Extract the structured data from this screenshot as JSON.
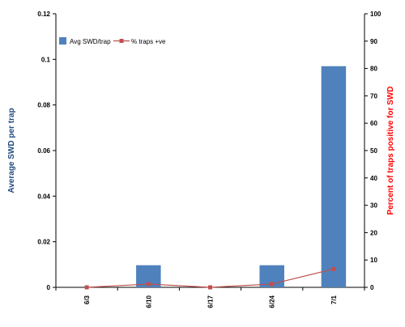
{
  "chart_data": {
    "type": "bar",
    "categories": [
      "6/3",
      "6/10",
      "6/17",
      "6/24",
      "7/1"
    ],
    "series": [
      {
        "name": "Avg SWD/trap",
        "type": "bar",
        "axis": "left",
        "color": "#4f81bd",
        "values": [
          0,
          0.0097,
          0,
          0.0097,
          0.097
        ]
      },
      {
        "name": "% traps +ve",
        "type": "line",
        "axis": "right",
        "color": "#c0504d",
        "values": [
          0,
          1.2,
          0,
          1.2,
          6.7
        ]
      }
    ],
    "ylabel": "Average SWD per trap",
    "ylabel_color": "#1f497d",
    "ylim": [
      0,
      0.12
    ],
    "yticks": [
      "0",
      "0.02",
      "0.04",
      "0.06",
      "0.08",
      "0.1",
      "0.12"
    ],
    "y2label": "Percent of traps positive for SWD",
    "y2label_color": "#ff0000",
    "y2lim": [
      0,
      100
    ],
    "y2ticks": [
      "0",
      "10",
      "20",
      "30",
      "40",
      "50",
      "60",
      "70",
      "80",
      "90",
      "100"
    ],
    "legend": "top-left",
    "grid": false
  }
}
